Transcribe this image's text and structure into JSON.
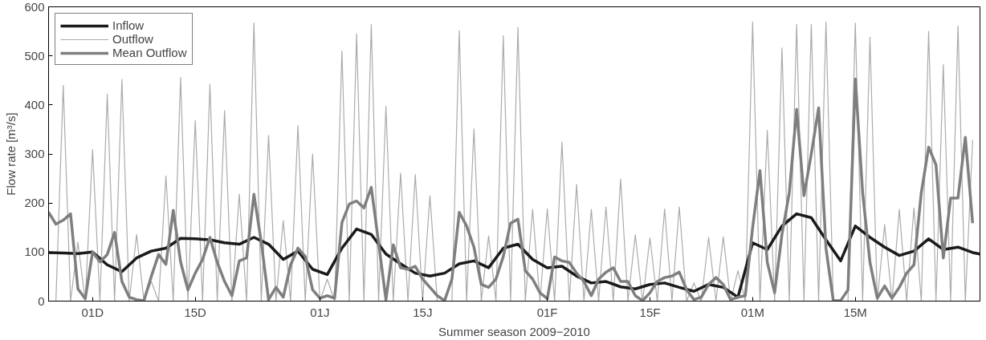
{
  "chart_data": {
    "type": "line",
    "xlabel": "Summer season 2009−2010",
    "ylabel": "Flow rate [m³/s]",
    "x": [
      "2009-11-25",
      "2009-11-26",
      "2009-11-27",
      "2009-11-28",
      "2009-11-29",
      "2009-11-30",
      "2009-12-01",
      "2009-12-02",
      "2009-12-03",
      "2009-12-04",
      "2009-12-05",
      "2009-12-06",
      "2009-12-07",
      "2009-12-08",
      "2009-12-09",
      "2009-12-10",
      "2009-12-11",
      "2009-12-12",
      "2009-12-13",
      "2009-12-14",
      "2009-12-15",
      "2009-12-16",
      "2009-12-17",
      "2009-12-18",
      "2009-12-19",
      "2009-12-20",
      "2009-12-21",
      "2009-12-22",
      "2009-12-23",
      "2009-12-24",
      "2009-12-25",
      "2009-12-26",
      "2009-12-27",
      "2009-12-28",
      "2009-12-29",
      "2009-12-30",
      "2009-12-31",
      "2010-01-01",
      "2010-01-02",
      "2010-01-03",
      "2010-01-04",
      "2010-01-05",
      "2010-01-06",
      "2010-01-07",
      "2010-01-08",
      "2010-01-09",
      "2010-01-10",
      "2010-01-11",
      "2010-01-12",
      "2010-01-13",
      "2010-01-14",
      "2010-01-15",
      "2010-01-16",
      "2010-01-17",
      "2010-01-18",
      "2010-01-19",
      "2010-01-20",
      "2010-01-21",
      "2010-01-22",
      "2010-01-23",
      "2010-01-24",
      "2010-01-25",
      "2010-01-26",
      "2010-01-27",
      "2010-01-28",
      "2010-01-29",
      "2010-01-30",
      "2010-01-31",
      "2010-02-01",
      "2010-02-02",
      "2010-02-03",
      "2010-02-04",
      "2010-02-05",
      "2010-02-06",
      "2010-02-07",
      "2010-02-08",
      "2010-02-09",
      "2010-02-10",
      "2010-02-11",
      "2010-02-12",
      "2010-02-13",
      "2010-02-14",
      "2010-02-15",
      "2010-02-16",
      "2010-02-17",
      "2010-02-18",
      "2010-02-19",
      "2010-02-20",
      "2010-02-21",
      "2010-02-22",
      "2010-02-23",
      "2010-02-24",
      "2010-02-25",
      "2010-02-26",
      "2010-02-27",
      "2010-02-28",
      "2010-03-01",
      "2010-03-02",
      "2010-03-03",
      "2010-03-04",
      "2010-03-05",
      "2010-03-06",
      "2010-03-07",
      "2010-03-08",
      "2010-03-09",
      "2010-03-10",
      "2010-03-11",
      "2010-03-12",
      "2010-03-13",
      "2010-03-14",
      "2010-03-15",
      "2010-03-16",
      "2010-03-17",
      "2010-03-18",
      "2010-03-19",
      "2010-03-20",
      "2010-03-21",
      "2010-03-22",
      "2010-03-23",
      "2010-03-24",
      "2010-03-25",
      "2010-03-26",
      "2010-03-27",
      "2010-03-28",
      "2010-03-29",
      "2010-03-30",
      "2010-03-31"
    ],
    "series": [
      {
        "name": "Inflow",
        "color": "#1a1a1a",
        "x": [
          "2009-11-25",
          "2009-11-27",
          "2009-11-29",
          "2009-12-01",
          "2009-12-03",
          "2009-12-05",
          "2009-12-07",
          "2009-12-09",
          "2009-12-11",
          "2009-12-13",
          "2009-12-15",
          "2009-12-17",
          "2009-12-19",
          "2009-12-21",
          "2009-12-23",
          "2009-12-25",
          "2009-12-27",
          "2009-12-29",
          "2009-12-31",
          "2010-01-02",
          "2010-01-04",
          "2010-01-06",
          "2010-01-08",
          "2010-01-10",
          "2010-01-12",
          "2010-01-14",
          "2010-01-16",
          "2010-01-18",
          "2010-01-20",
          "2010-01-22",
          "2010-01-24",
          "2010-01-26",
          "2010-01-28",
          "2010-01-30",
          "2010-02-01",
          "2010-02-03",
          "2010-02-05",
          "2010-02-07",
          "2010-02-09",
          "2010-02-11",
          "2010-02-13",
          "2010-02-15",
          "2010-02-17",
          "2010-02-19",
          "2010-02-21",
          "2010-02-23",
          "2010-02-25",
          "2010-02-27",
          "2010-03-01",
          "2010-03-03",
          "2010-03-05",
          "2010-03-07",
          "2010-03-09",
          "2010-03-11",
          "2010-03-13",
          "2010-03-15",
          "2010-03-17",
          "2010-03-19",
          "2010-03-21",
          "2010-03-23",
          "2010-03-25",
          "2010-03-27",
          "2010-03-29",
          "2010-03-31",
          "2010-04-01"
        ],
        "values": [
          99,
          98,
          97,
          100,
          74,
          60,
          88,
          102,
          108,
          128,
          127,
          125,
          119,
          116,
          130,
          116,
          85,
          102,
          65,
          54,
          108,
          147,
          136,
          96,
          76,
          57,
          51,
          57,
          76,
          82,
          68,
          108,
          116,
          85,
          68,
          71,
          51,
          37,
          40,
          29,
          25,
          34,
          37,
          28,
          20,
          34,
          28,
          8,
          119,
          105,
          153,
          178,
          170,
          125,
          82,
          153,
          130,
          110,
          93,
          102,
          127,
          105,
          110,
          99,
          96
        ]
      },
      {
        "name": "Outflow",
        "color": "#ababab",
        "values": [
          null,
          0,
          440,
          0,
          120,
          0,
          309,
          0,
          422,
          0,
          452,
          0,
          136,
          0,
          40,
          0,
          255,
          0,
          456,
          0,
          368,
          0,
          442,
          0,
          388,
          0,
          218,
          0,
          567,
          0,
          338,
          0,
          164,
          0,
          358,
          0,
          300,
          0,
          45,
          0,
          510,
          0,
          545,
          0,
          564,
          0,
          397,
          0,
          261,
          0,
          258,
          0,
          215,
          0,
          0,
          0,
          551,
          0,
          351,
          0,
          133,
          0,
          541,
          0,
          558,
          0,
          187,
          0,
          188,
          0,
          324,
          0,
          238,
          0,
          187,
          0,
          192,
          0,
          249,
          0,
          135,
          0,
          129,
          0,
          188,
          0,
          192,
          0,
          37,
          0,
          130,
          0,
          131,
          0,
          62,
          0,
          569,
          0,
          348,
          0,
          516,
          0,
          564,
          0,
          564,
          0,
          569,
          0,
          0,
          0,
          567,
          0,
          538,
          0,
          156,
          0,
          187,
          0,
          190,
          0,
          550,
          0,
          482,
          0,
          561,
          0,
          329
        ]
      },
      {
        "name": "Mean Outflow",
        "color": "#7f7f7f",
        "values": [
          181,
          157,
          165,
          178,
          25,
          5,
          100,
          80,
          95,
          140,
          40,
          8,
          3,
          1,
          50,
          95,
          75,
          185,
          80,
          23,
          57,
          85,
          130,
          79,
          40,
          11,
          82,
          88,
          218,
          120,
          3,
          28,
          8,
          74,
          108,
          91,
          23,
          6,
          11,
          6,
          160,
          198,
          204,
          190,
          232,
          119,
          3,
          115,
          68,
          65,
          71,
          45,
          28,
          11,
          1,
          45,
          181,
          153,
          110,
          34,
          28,
          45,
          91,
          159,
          167,
          62,
          45,
          17,
          5,
          90,
          82,
          79,
          57,
          40,
          11,
          45,
          59,
          68,
          40,
          40,
          11,
          1,
          17,
          40,
          48,
          51,
          59,
          23,
          3,
          8,
          34,
          48,
          34,
          3,
          8,
          11,
          150,
          266,
          79,
          17,
          136,
          221,
          391,
          215,
          300,
          394,
          108,
          1,
          1,
          23,
          453,
          221,
          79,
          6,
          31,
          6,
          28,
          57,
          74,
          221,
          314,
          278,
          88,
          210,
          210,
          334,
          159
        ]
      }
    ],
    "xlim": [
      "2009-11-25",
      "2010-04-01"
    ],
    "xticks": [
      {
        "value": "2009-12-01",
        "label": "01D"
      },
      {
        "value": "2009-12-15",
        "label": "15D"
      },
      {
        "value": "2010-01-01",
        "label": "01J"
      },
      {
        "value": "2010-01-15",
        "label": "15J"
      },
      {
        "value": "2010-02-01",
        "label": "01F"
      },
      {
        "value": "2010-02-15",
        "label": "15F"
      },
      {
        "value": "2010-03-01",
        "label": "01M"
      },
      {
        "value": "2010-03-15",
        "label": "15M"
      }
    ],
    "ylim": [
      0,
      600
    ],
    "yticks": [
      0,
      100,
      200,
      300,
      400,
      500,
      600
    ],
    "legend": "top left",
    "grid": false,
    "line_style": "solid"
  }
}
